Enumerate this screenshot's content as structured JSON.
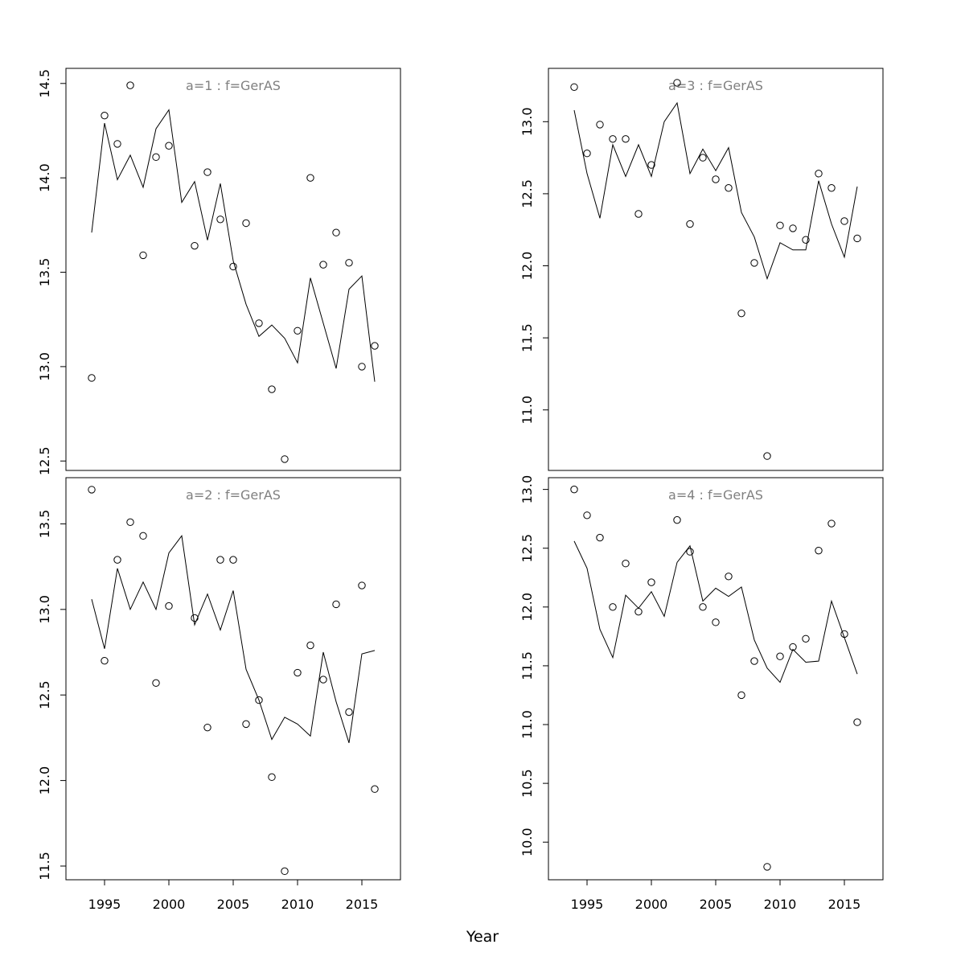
{
  "xlabel": "Year",
  "chart_data": [
    {
      "type": "scatter",
      "title": "a=1  :  f=GerAS",
      "xlim": [
        1992,
        2018
      ],
      "ylim": [
        12.45,
        14.58
      ],
      "yticks": [
        12.5,
        13.0,
        13.5,
        14.0,
        14.5
      ],
      "ytick_labels": [
        "12.5",
        "13.0",
        "13.5",
        "14.0",
        "14.5"
      ],
      "xticks": [],
      "xtick_labels": [],
      "grid": false,
      "series": [
        {
          "kind": "points",
          "x": [
            1994,
            1995,
            1996,
            1997,
            1998,
            1999,
            2000,
            2002,
            2003,
            2004,
            2005,
            2006,
            2007,
            2008,
            2009,
            2010,
            2011,
            2012,
            2013,
            2014,
            2015,
            2016
          ],
          "y": [
            12.94,
            14.33,
            14.18,
            14.49,
            13.59,
            14.11,
            14.17,
            13.64,
            14.03,
            13.78,
            13.53,
            13.76,
            13.23,
            12.88,
            12.51,
            13.19,
            14.0,
            13.54,
            13.71,
            13.55,
            13.0,
            13.11
          ]
        },
        {
          "kind": "line",
          "x": [
            1994,
            1995,
            1996,
            1997,
            1998,
            1999,
            2000,
            2001,
            2002,
            2003,
            2004,
            2005,
            2006,
            2007,
            2008,
            2009,
            2010,
            2011,
            2012,
            2013,
            2014,
            2015,
            2016
          ],
          "y": [
            13.71,
            14.29,
            13.99,
            14.12,
            13.95,
            14.26,
            14.36,
            13.87,
            13.98,
            13.67,
            13.97,
            13.56,
            13.33,
            13.16,
            13.22,
            13.15,
            13.02,
            13.47,
            13.23,
            12.99,
            13.41,
            13.48,
            12.92
          ]
        }
      ]
    },
    {
      "type": "scatter",
      "title": "a=3  :  f=GerAS",
      "xlim": [
        1992,
        2018
      ],
      "ylim": [
        10.58,
        13.37
      ],
      "yticks": [
        11.0,
        11.5,
        12.0,
        12.5,
        13.0
      ],
      "ytick_labels": [
        "11.0",
        "11.5",
        "12.0",
        "12.5",
        "13.0"
      ],
      "xticks": [],
      "xtick_labels": [],
      "grid": false,
      "series": [
        {
          "kind": "points",
          "x": [
            1994,
            1995,
            1996,
            1997,
            1998,
            1999,
            2000,
            2002,
            2003,
            2004,
            2005,
            2006,
            2007,
            2008,
            2009,
            2010,
            2011,
            2012,
            2013,
            2014,
            2015,
            2016
          ],
          "y": [
            13.24,
            12.78,
            12.98,
            12.88,
            12.88,
            12.36,
            12.7,
            13.27,
            12.29,
            12.75,
            12.6,
            12.54,
            11.67,
            12.02,
            10.68,
            12.28,
            12.26,
            12.18,
            12.64,
            12.54,
            12.31,
            12.19
          ]
        },
        {
          "kind": "line",
          "x": [
            1994,
            1995,
            1996,
            1997,
            1998,
            1999,
            2000,
            2001,
            2002,
            2003,
            2004,
            2005,
            2006,
            2007,
            2008,
            2009,
            2010,
            2011,
            2012,
            2013,
            2014,
            2015,
            2016
          ],
          "y": [
            13.08,
            12.64,
            12.33,
            12.84,
            12.62,
            12.84,
            12.62,
            13.0,
            13.13,
            12.64,
            12.81,
            12.66,
            12.82,
            12.37,
            12.2,
            11.91,
            12.16,
            12.11,
            12.11,
            12.59,
            12.29,
            12.06,
            12.55
          ]
        }
      ]
    },
    {
      "type": "scatter",
      "title": "a=2  :  f=GerAS",
      "xlim": [
        1992,
        2018
      ],
      "ylim": [
        11.42,
        13.77
      ],
      "yticks": [
        11.5,
        12.0,
        12.5,
        13.0,
        13.5
      ],
      "ytick_labels": [
        "11.5",
        "12.0",
        "12.5",
        "13.0",
        "13.5"
      ],
      "xticks": [
        1995,
        2000,
        2005,
        2010,
        2015
      ],
      "xtick_labels": [
        "1995",
        "2000",
        "2005",
        "2010",
        "2015"
      ],
      "grid": false,
      "series": [
        {
          "kind": "points",
          "x": [
            1994,
            1995,
            1996,
            1997,
            1998,
            1999,
            2000,
            2002,
            2003,
            2004,
            2005,
            2006,
            2007,
            2008,
            2009,
            2010,
            2011,
            2012,
            2013,
            2014,
            2015,
            2016
          ],
          "y": [
            13.7,
            12.7,
            13.29,
            13.51,
            13.43,
            12.57,
            13.02,
            12.95,
            12.31,
            13.29,
            13.29,
            12.33,
            12.47,
            12.02,
            11.47,
            12.63,
            12.79,
            12.59,
            13.03,
            12.4,
            13.14,
            11.95
          ]
        },
        {
          "kind": "line",
          "x": [
            1994,
            1995,
            1996,
            1997,
            1998,
            1999,
            2000,
            2001,
            2002,
            2003,
            2004,
            2005,
            2006,
            2007,
            2008,
            2009,
            2010,
            2011,
            2012,
            2013,
            2014,
            2015,
            2016
          ],
          "y": [
            13.06,
            12.77,
            13.24,
            13.0,
            13.16,
            13.0,
            13.33,
            13.43,
            12.91,
            13.09,
            12.88,
            13.11,
            12.65,
            12.47,
            12.24,
            12.37,
            12.33,
            12.26,
            12.75,
            12.46,
            12.22,
            12.74,
            12.76
          ]
        }
      ]
    },
    {
      "type": "scatter",
      "title": "a=4  :  f=GerAS",
      "xlim": [
        1992,
        2018
      ],
      "ylim": [
        9.68,
        13.1
      ],
      "yticks": [
        10.0,
        10.5,
        11.0,
        11.5,
        12.0,
        12.5,
        13.0
      ],
      "ytick_labels": [
        "10.0",
        "10.5",
        "11.0",
        "11.5",
        "12.0",
        "12.5",
        "13.0"
      ],
      "xticks": [
        1995,
        2000,
        2005,
        2010,
        2015
      ],
      "xtick_labels": [
        "1995",
        "2000",
        "2005",
        "2010",
        "2015"
      ],
      "grid": false,
      "series": [
        {
          "kind": "points",
          "x": [
            1994,
            1995,
            1996,
            1997,
            1998,
            1999,
            2000,
            2002,
            2003,
            2004,
            2005,
            2006,
            2007,
            2008,
            2009,
            2010,
            2011,
            2012,
            2013,
            2014,
            2015,
            2016
          ],
          "y": [
            13.0,
            12.78,
            12.59,
            12.0,
            12.37,
            11.96,
            12.21,
            12.74,
            12.47,
            12.0,
            11.87,
            12.26,
            11.25,
            11.54,
            9.79,
            11.58,
            11.66,
            11.73,
            12.48,
            12.71,
            11.77,
            11.02
          ]
        },
        {
          "kind": "line",
          "x": [
            1994,
            1995,
            1996,
            1997,
            1998,
            1999,
            2000,
            2001,
            2002,
            2003,
            2004,
            2005,
            2006,
            2007,
            2008,
            2009,
            2010,
            2011,
            2012,
            2013,
            2014,
            2015,
            2016
          ],
          "y": [
            12.56,
            12.33,
            11.81,
            11.57,
            12.1,
            11.99,
            12.13,
            11.92,
            12.38,
            12.52,
            12.05,
            12.16,
            12.09,
            12.17,
            11.72,
            11.48,
            11.36,
            11.64,
            11.53,
            11.54,
            12.05,
            11.74,
            11.43
          ]
        }
      ]
    }
  ]
}
